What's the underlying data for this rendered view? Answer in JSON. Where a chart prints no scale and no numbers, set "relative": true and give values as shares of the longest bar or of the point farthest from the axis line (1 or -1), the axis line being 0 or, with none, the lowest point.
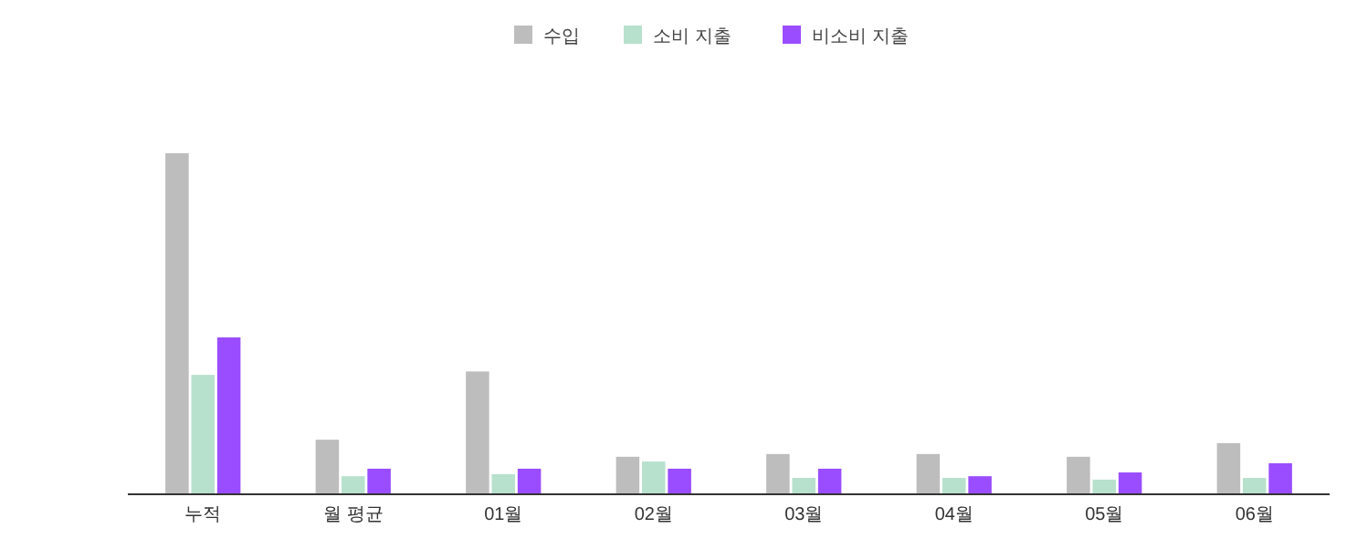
{
  "chart_data": {
    "type": "bar",
    "relative": true,
    "legend": "top",
    "categories": [
      "누적",
      "월 평균",
      "01월",
      "02월",
      "03월",
      "04월",
      "05월",
      "06월"
    ],
    "series": [
      {
        "name": "수입",
        "color": "#bdbdbd",
        "values": [
          1,
          0.16,
          0.36,
          0.11,
          0.118,
          0.118,
          0.11,
          0.15
        ]
      },
      {
        "name": "소비 지출",
        "color": "#b7e1cd",
        "values": [
          0.35,
          0.053,
          0.059,
          0.096,
          0.048,
          0.048,
          0.043,
          0.048
        ]
      },
      {
        "name": "비소비 지출",
        "color": "#9a4dff",
        "values": [
          0.46,
          0.075,
          0.075,
          0.075,
          0.075,
          0.053,
          0.064,
          0.091
        ]
      }
    ]
  }
}
